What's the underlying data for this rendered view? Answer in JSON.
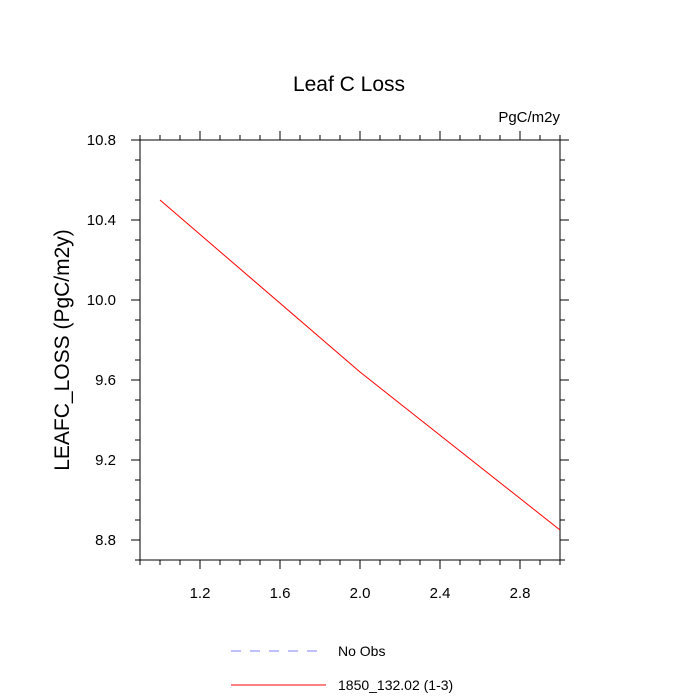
{
  "chart_data": {
    "type": "line",
    "title": "Leaf C Loss",
    "units_label": "PgC/m2y",
    "xlabel": "",
    "ylabel": "LEAFC_LOSS  (PgC/m2y)",
    "xlim": [
      0.9,
      3.0
    ],
    "ylim": [
      8.7,
      10.8
    ],
    "x_ticks": [
      1.2,
      1.6,
      2.0,
      2.4,
      2.8
    ],
    "x_tick_labels": [
      "1.2",
      "1.6",
      "2.0",
      "2.4",
      "2.8"
    ],
    "y_ticks": [
      8.8,
      9.2,
      9.6,
      10.0,
      10.4,
      10.8
    ],
    "y_tick_labels": [
      "8.8",
      "9.2",
      "9.6",
      "10.0",
      "10.4",
      "10.8"
    ],
    "grid": false,
    "legend_position": "bottom-center",
    "series": [
      {
        "name": "1850_132.02 (1-3)",
        "color": "#ff0000",
        "style": "solid",
        "x": [
          1,
          2,
          3
        ],
        "y": [
          10.5,
          9.64,
          8.85
        ]
      }
    ],
    "legend": [
      {
        "label": "No Obs",
        "color": "#8080ff",
        "style": "dashed"
      },
      {
        "label": "1850_132.02 (1-3)",
        "color": "#ff0000",
        "style": "solid"
      }
    ]
  }
}
